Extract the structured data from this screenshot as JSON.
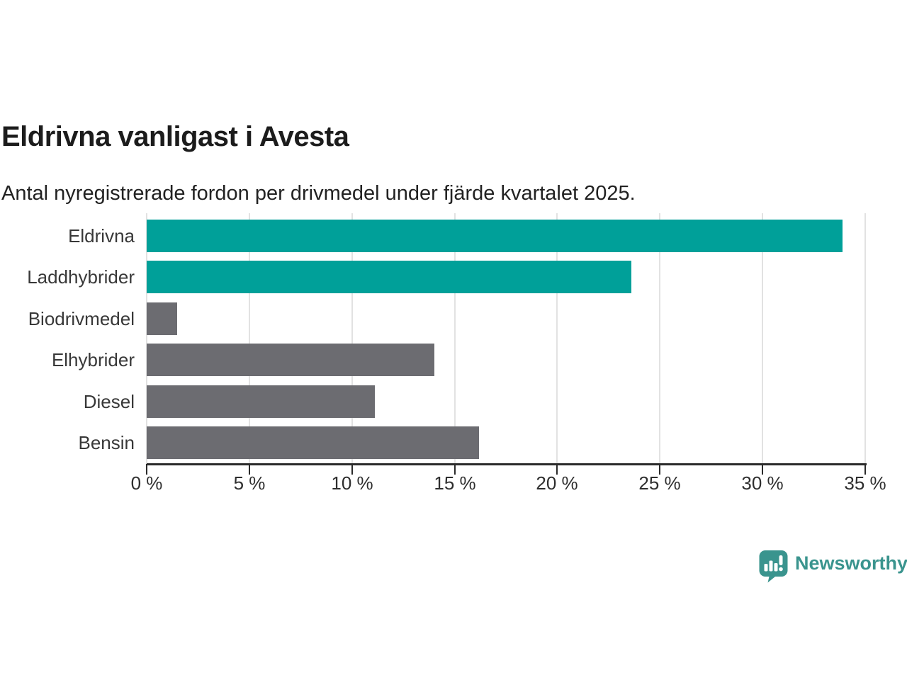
{
  "header": {
    "title": "Eldrivna vanligast i Avesta",
    "subtitle": "Antal nyregistrerade fordon per drivmedel under fjärde kvartalet 2025."
  },
  "chart_data": {
    "type": "bar",
    "orientation": "horizontal",
    "title": "Eldrivna vanligast i Avesta",
    "subtitle": "Antal nyregistrerade fordon per drivmedel under fjärde kvartalet 2025.",
    "categories": [
      "Eldrivna",
      "Laddhybrider",
      "Biodrivmedel",
      "Elhybrider",
      "Diesel",
      "Bensin"
    ],
    "values": [
      33.9,
      23.6,
      1.5,
      14.0,
      11.1,
      16.2
    ],
    "unit": "%",
    "bar_colors": [
      "#00a099",
      "#00a099",
      "#6c6c71",
      "#6c6c71",
      "#6c6c71",
      "#6c6c71"
    ],
    "xlim": [
      0,
      35
    ],
    "x_ticks": [
      0,
      5,
      10,
      15,
      20,
      25,
      30,
      35
    ],
    "x_tick_labels": [
      "0 %",
      "5 %",
      "10 %",
      "15 %",
      "20 %",
      "25 %",
      "30 %",
      "35 %"
    ],
    "grid": true,
    "legend": "none",
    "xlabel": "",
    "ylabel": ""
  },
  "footer": {
    "brand": "Newsworthy"
  },
  "colors": {
    "accent_teal": "#00a099",
    "bar_gray": "#6c6c71",
    "grid_line": "#e2e2e2",
    "axis_line": "#2a2a2a",
    "text_dark": "#1c1c1c",
    "brand_teal": "#3a948e"
  }
}
